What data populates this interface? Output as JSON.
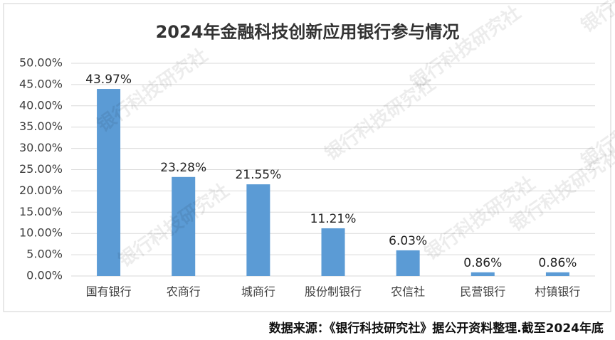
{
  "chart_data": {
    "type": "bar",
    "title": "2024年金融科技创新应用银行参与情况",
    "categories": [
      "国有银行",
      "农商行",
      "城商行",
      "股份制银行",
      "农信社",
      "民营银行",
      "村镇银行"
    ],
    "values": [
      43.97,
      23.28,
      21.55,
      11.21,
      6.03,
      0.86,
      0.86
    ],
    "value_labels": [
      "43.97%",
      "23.28%",
      "21.55%",
      "11.21%",
      "6.03%",
      "0.86%",
      "0.86%"
    ],
    "color": "#5b9bd5",
    "ylim": [
      0,
      50
    ],
    "yticks": [
      {
        "value": 0,
        "label": "0.00%"
      },
      {
        "value": 5,
        "label": "5.00%"
      },
      {
        "value": 10,
        "label": "10.00%"
      },
      {
        "value": 15,
        "label": "15.00%"
      },
      {
        "value": 20,
        "label": "20.00%"
      },
      {
        "value": 25,
        "label": "25.00%"
      },
      {
        "value": 30,
        "label": "30.00%"
      },
      {
        "value": 35,
        "label": "35.00%"
      },
      {
        "value": 40,
        "label": "40.00%"
      },
      {
        "value": 45,
        "label": "45.00%"
      },
      {
        "value": 50,
        "label": "50.00%"
      }
    ],
    "grid": true,
    "source": "数据来源：《银行科技研究社》据公开资料整理.截至2024年底",
    "watermark": "银行科技研究社"
  }
}
